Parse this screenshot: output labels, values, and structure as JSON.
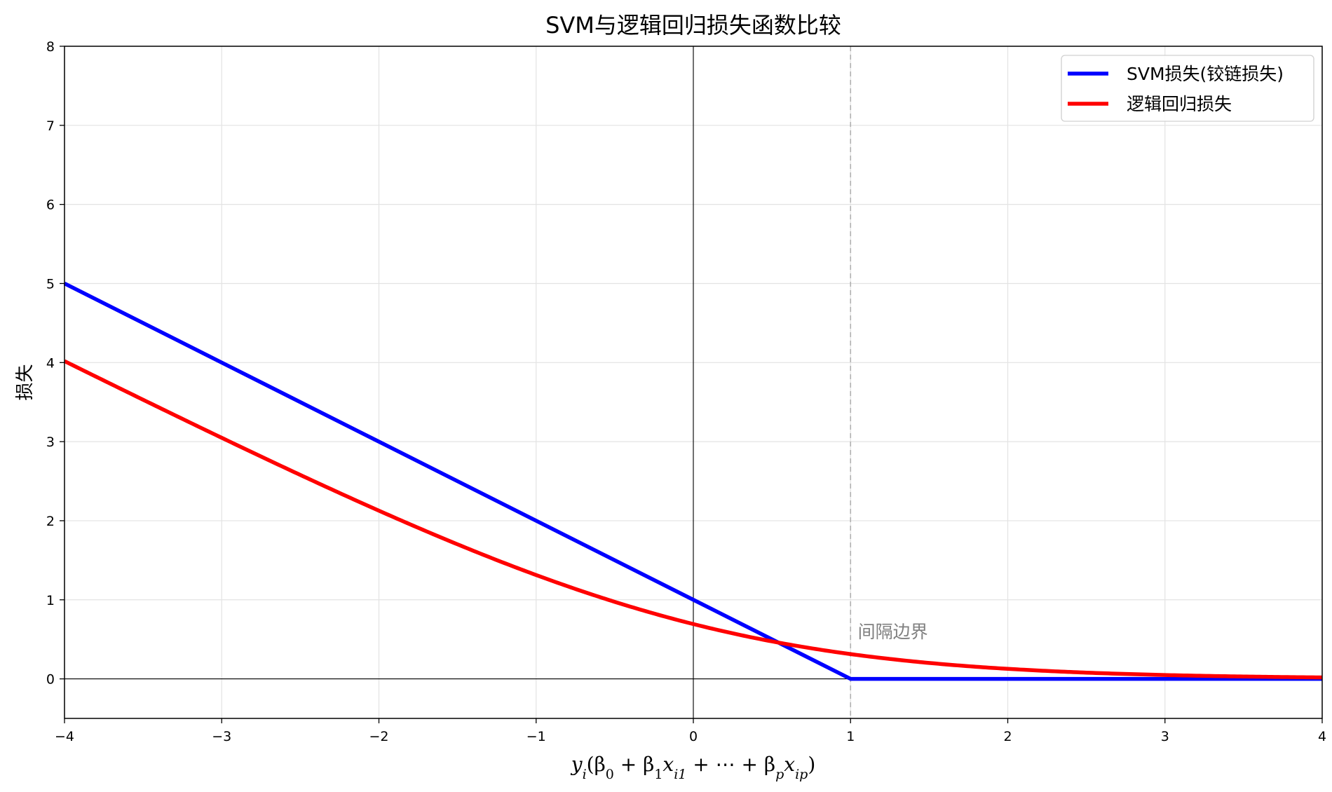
{
  "chart_data": {
    "type": "line",
    "title": "SVM与逻辑回归损失函数比较",
    "xlabel": "y_i(β_0 + β_1 x_i1 + ⋯ + β_p x_ip)",
    "ylabel": "损失",
    "xlim": [
      -4,
      4
    ],
    "ylim": [
      -0.5,
      8
    ],
    "x_ticks": [
      "−4",
      "−3",
      "−2",
      "−1",
      "0",
      "1",
      "2",
      "3",
      "4"
    ],
    "y_ticks": [
      "0",
      "1",
      "2",
      "3",
      "4",
      "5",
      "6",
      "7",
      "8"
    ],
    "grid": true,
    "legend_position": "top-right",
    "reference_lines": [
      {
        "orientation": "horizontal",
        "value": 0,
        "style": "solid",
        "color": "#000000"
      },
      {
        "orientation": "vertical",
        "value": 0,
        "style": "solid",
        "color": "#000000"
      },
      {
        "orientation": "vertical",
        "value": 1,
        "style": "dashed",
        "color": "#b0b0b0"
      }
    ],
    "annotations": [
      {
        "text": "间隔边界",
        "x": 1.1,
        "y": 0.6,
        "color": "#808080"
      }
    ],
    "series": [
      {
        "name": "SVM损失(铰链损失)",
        "color": "#0000ff",
        "x": [
          -4,
          -3,
          -2,
          -1,
          0,
          1,
          2,
          3,
          4
        ],
        "y": [
          5,
          4,
          3,
          2,
          1,
          0,
          0,
          0,
          0
        ]
      },
      {
        "name": "逻辑回归损失",
        "color": "#ff0000",
        "x": [
          -4,
          -3.5,
          -3,
          -2.5,
          -2,
          -1.5,
          -1,
          -0.5,
          0,
          0.5,
          1,
          1.5,
          2,
          2.5,
          3,
          3.5,
          4
        ],
        "y": [
          4.02,
          3.53,
          3.05,
          2.58,
          2.13,
          1.7,
          1.31,
          0.97,
          0.69,
          0.47,
          0.31,
          0.2,
          0.13,
          0.08,
          0.05,
          0.03,
          0.02
        ]
      }
    ]
  }
}
